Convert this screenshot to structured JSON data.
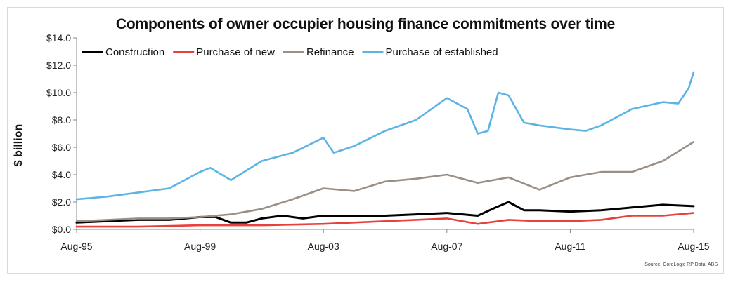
{
  "chart_data": {
    "type": "line",
    "title": "Components of owner occupier housing finance commitments over time",
    "xlabel": "",
    "ylabel": "$ billion",
    "source": "Source: CoreLogic RP Data, ABS",
    "x_range": [
      "Aug-95",
      "Aug-15"
    ],
    "ylim": [
      0,
      14
    ],
    "y_ticks": [
      "$0.0",
      "$2.0",
      "$4.0",
      "$6.0",
      "$8.0",
      "$10.0",
      "$12.0",
      "$14.0"
    ],
    "x_ticks": [
      "Aug-95",
      "Aug-99",
      "Aug-03",
      "Aug-07",
      "Aug-11",
      "Aug-15"
    ],
    "legend_position": "top-left",
    "grid": false,
    "series": [
      {
        "name": "Construction",
        "color": "#000000",
        "points": [
          [
            "Aug-95",
            0.5
          ],
          [
            "Aug-96",
            0.6
          ],
          [
            "Aug-97",
            0.7
          ],
          [
            "Aug-98",
            0.7
          ],
          [
            "Aug-99",
            0.9
          ],
          [
            "Feb-00",
            0.9
          ],
          [
            "Aug-00",
            0.5
          ],
          [
            "Feb-01",
            0.5
          ],
          [
            "Aug-01",
            0.8
          ],
          [
            "Apr-02",
            1.0
          ],
          [
            "Dec-02",
            0.8
          ],
          [
            "Aug-03",
            1.0
          ],
          [
            "Aug-04",
            1.0
          ],
          [
            "Aug-05",
            1.0
          ],
          [
            "Aug-06",
            1.1
          ],
          [
            "Aug-07",
            1.2
          ],
          [
            "Aug-08",
            1.0
          ],
          [
            "Mar-09",
            1.6
          ],
          [
            "Aug-09",
            2.0
          ],
          [
            "Feb-10",
            1.4
          ],
          [
            "Aug-10",
            1.4
          ],
          [
            "Aug-11",
            1.3
          ],
          [
            "Aug-12",
            1.4
          ],
          [
            "Aug-13",
            1.6
          ],
          [
            "Aug-14",
            1.8
          ],
          [
            "Aug-15",
            1.7
          ]
        ]
      },
      {
        "name": "Purchase of new",
        "color": "#e8413c",
        "points": [
          [
            "Aug-95",
            0.2
          ],
          [
            "Aug-97",
            0.2
          ],
          [
            "Aug-99",
            0.3
          ],
          [
            "Aug-01",
            0.3
          ],
          [
            "Aug-03",
            0.4
          ],
          [
            "Aug-05",
            0.6
          ],
          [
            "Aug-06",
            0.7
          ],
          [
            "Aug-07",
            0.8
          ],
          [
            "Aug-08",
            0.4
          ],
          [
            "Aug-09",
            0.7
          ],
          [
            "Aug-10",
            0.6
          ],
          [
            "Aug-11",
            0.6
          ],
          [
            "Aug-12",
            0.7
          ],
          [
            "Aug-13",
            1.0
          ],
          [
            "Aug-14",
            1.0
          ],
          [
            "Aug-15",
            1.2
          ]
        ]
      },
      {
        "name": "Refinance",
        "color": "#9a8f85",
        "points": [
          [
            "Aug-95",
            0.6
          ],
          [
            "Aug-96",
            0.7
          ],
          [
            "Aug-97",
            0.8
          ],
          [
            "Aug-98",
            0.8
          ],
          [
            "Aug-99",
            0.9
          ],
          [
            "Aug-00",
            1.1
          ],
          [
            "Aug-01",
            1.5
          ],
          [
            "Aug-02",
            2.2
          ],
          [
            "Aug-03",
            3.0
          ],
          [
            "Aug-04",
            2.8
          ],
          [
            "Aug-05",
            3.5
          ],
          [
            "Aug-06",
            3.7
          ],
          [
            "Aug-07",
            4.0
          ],
          [
            "Aug-08",
            3.4
          ],
          [
            "Aug-09",
            3.8
          ],
          [
            "Aug-10",
            2.9
          ],
          [
            "Aug-11",
            3.8
          ],
          [
            "Aug-12",
            4.2
          ],
          [
            "Aug-13",
            4.2
          ],
          [
            "Aug-14",
            5.0
          ],
          [
            "Aug-15",
            6.4
          ]
        ]
      },
      {
        "name": "Purchase of established",
        "color": "#5bb4e5",
        "points": [
          [
            "Aug-95",
            2.2
          ],
          [
            "Aug-96",
            2.4
          ],
          [
            "Aug-97",
            2.7
          ],
          [
            "Aug-98",
            3.0
          ],
          [
            "Aug-99",
            4.2
          ],
          [
            "Dec-99",
            4.5
          ],
          [
            "Aug-00",
            3.6
          ],
          [
            "Aug-01",
            5.0
          ],
          [
            "Aug-02",
            5.6
          ],
          [
            "Aug-03",
            6.7
          ],
          [
            "Dec-03",
            5.6
          ],
          [
            "Aug-04",
            6.1
          ],
          [
            "Aug-05",
            7.2
          ],
          [
            "Aug-06",
            8.0
          ],
          [
            "Aug-07",
            9.6
          ],
          [
            "Apr-08",
            8.8
          ],
          [
            "Aug-08",
            7.0
          ],
          [
            "Dec-08",
            7.2
          ],
          [
            "Apr-09",
            10.0
          ],
          [
            "Aug-09",
            9.8
          ],
          [
            "Feb-10",
            7.8
          ],
          [
            "Aug-10",
            7.6
          ],
          [
            "Aug-11",
            7.3
          ],
          [
            "Feb-12",
            7.2
          ],
          [
            "Aug-12",
            7.6
          ],
          [
            "Aug-13",
            8.8
          ],
          [
            "Aug-14",
            9.3
          ],
          [
            "Feb-15",
            9.2
          ],
          [
            "Jun-15",
            10.3
          ],
          [
            "Aug-15",
            11.5
          ]
        ]
      }
    ]
  }
}
